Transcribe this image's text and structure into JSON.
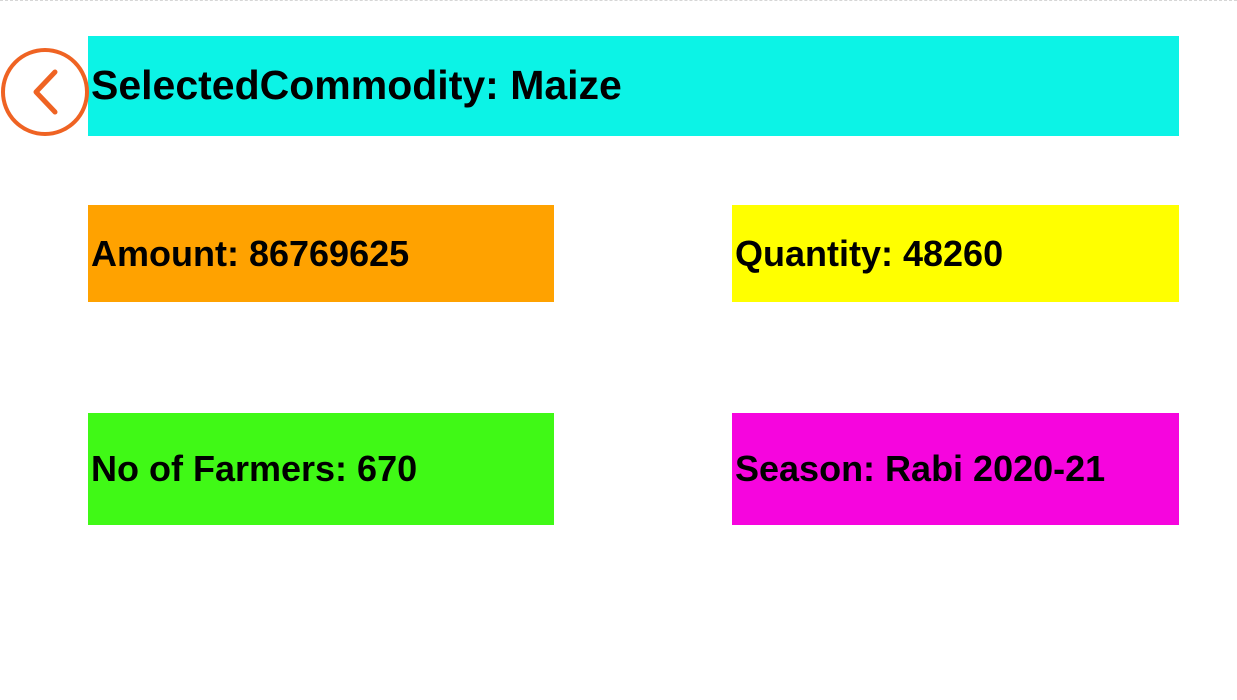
{
  "header": {
    "title": "SelectedCommodity: Maize",
    "back_icon": "chevron-left-icon",
    "back_color": "#ef6323",
    "banner_color": "#0cf3e6"
  },
  "cards": {
    "amount": {
      "text": "Amount: 86769625",
      "color": "#ffa200"
    },
    "quantity": {
      "text": "Quantity: 48260",
      "color": "#ffff00"
    },
    "farmers": {
      "text": "No of Farmers: 670",
      "color": "#40f916"
    },
    "season": {
      "text": "Season: Rabi 2020-21",
      "color": "#f605de"
    }
  }
}
